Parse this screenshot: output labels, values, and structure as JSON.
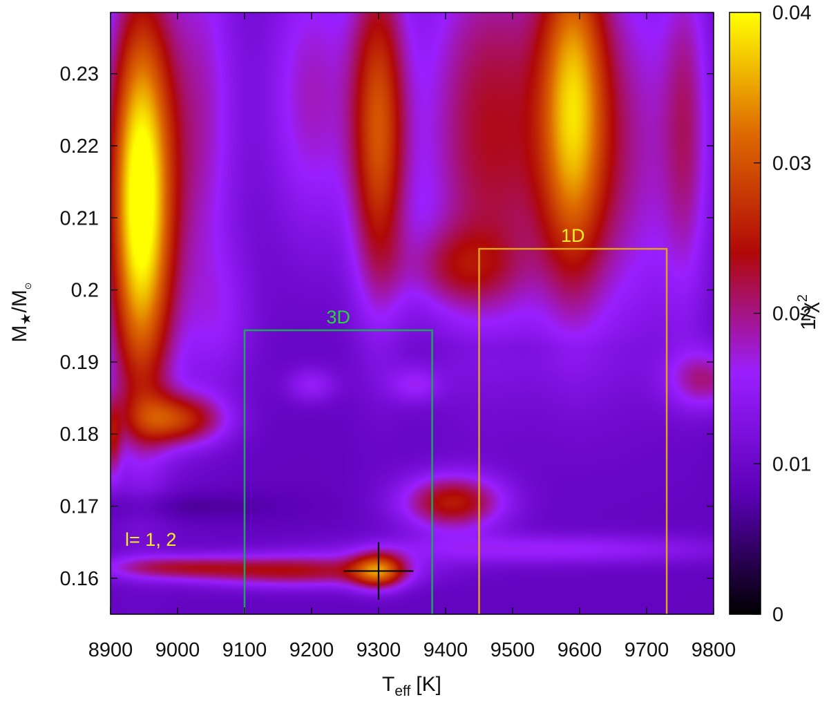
{
  "chart_data": {
    "type": "heatmap",
    "x_axis": {
      "quantity": "T",
      "subscript": "eff",
      "unit": "[K]",
      "range": [
        8900,
        9800
      ],
      "ticks": [
        "8900",
        "9000",
        "9100",
        "9200",
        "9300",
        "9400",
        "9500",
        "9600",
        "9700",
        "9800"
      ]
    },
    "y_axis": {
      "quantity": "M",
      "star_symbol": "★",
      "slash": "/M",
      "sun_symbol": "⊙",
      "range": [
        0.155,
        0.2385
      ],
      "ticks": [
        "0.16",
        "0.17",
        "0.18",
        "0.19",
        "0.2",
        "0.21",
        "0.22",
        "0.23"
      ]
    },
    "colorbar": {
      "label_base": "1/χ",
      "label_exp": "2",
      "range": [
        0,
        0.04
      ],
      "ticks": [
        "0",
        "0.01",
        "0.02",
        "0.03",
        "0.04"
      ],
      "colors": [
        "#000000",
        "#5b00b6",
        "#9a1fff",
        "#b00808",
        "#de6a00",
        "#ffff00"
      ]
    },
    "background_value": 0.009,
    "blobs": [
      {
        "x": 8945,
        "y": 0.2125,
        "sx": 35,
        "sy": 0.02,
        "v": 0.034
      },
      {
        "x": 9035,
        "y": 0.224,
        "sx": 40,
        "sy": 0.022,
        "v": 0.009
      },
      {
        "x": 9200,
        "y": 0.227,
        "sx": 50,
        "sy": 0.015,
        "v": 0.009
      },
      {
        "x": 9070,
        "y": 0.196,
        "sx": 40,
        "sy": 0.007,
        "v": 0.004
      },
      {
        "x": 9000,
        "y": 0.182,
        "sx": 50,
        "sy": 0.0026,
        "v": 0.016
      },
      {
        "x": 9300,
        "y": 0.222,
        "sx": 30,
        "sy": 0.017,
        "v": 0.019
      },
      {
        "x": 9465,
        "y": 0.222,
        "sx": 75,
        "sy": 0.02,
        "v": 0.014
      },
      {
        "x": 9420,
        "y": 0.203,
        "sx": 60,
        "sy": 0.004,
        "v": 0.008
      },
      {
        "x": 9590,
        "y": 0.226,
        "sx": 35,
        "sy": 0.017,
        "v": 0.02
      },
      {
        "x": 9660,
        "y": 0.22,
        "sx": 75,
        "sy": 0.02,
        "v": 0.01
      },
      {
        "x": 9760,
        "y": 0.223,
        "sx": 25,
        "sy": 0.018,
        "v": 0.008
      },
      {
        "x": 9300,
        "y": 0.161,
        "sx": 28,
        "sy": 0.0018,
        "v": 0.018
      },
      {
        "x": 9180,
        "y": 0.161,
        "sx": 110,
        "sy": 0.0016,
        "v": 0.014
      },
      {
        "x": 8990,
        "y": 0.1615,
        "sx": 80,
        "sy": 0.0012,
        "v": 0.01
      },
      {
        "x": 9410,
        "y": 0.1705,
        "sx": 55,
        "sy": 0.0028,
        "v": 0.016
      },
      {
        "x": 9200,
        "y": 0.1868,
        "sx": 28,
        "sy": 0.0018,
        "v": 0.006
      },
      {
        "x": 9355,
        "y": 0.1868,
        "sx": 28,
        "sy": 0.0018,
        "v": 0.006
      },
      {
        "x": 9790,
        "y": 0.1875,
        "sx": 40,
        "sy": 0.003,
        "v": 0.01
      },
      {
        "x": 8902,
        "y": 0.179,
        "sx": 10,
        "sy": 0.004,
        "v": 0.01
      },
      {
        "x": 9550,
        "y": 0.164,
        "sx": 200,
        "sy": 0.0015,
        "v": 0.007
      },
      {
        "x": 8980,
        "y": 0.17,
        "sx": 120,
        "sy": 0.0015,
        "v": -0.003
      },
      {
        "x": 9500,
        "y": 0.192,
        "sx": 120,
        "sy": 0.0012,
        "v": -0.001
      }
    ],
    "boxes": [
      {
        "label": "3D",
        "x0": 9100,
        "x1": 9380,
        "y1": 0.1944,
        "color": "#1aa65c",
        "label_color": "#22d83a"
      },
      {
        "label": "1D",
        "x0": 9450,
        "x1": 9730,
        "y1": 0.2057,
        "color": "#e0a21a",
        "label_color": "#ffee22"
      }
    ],
    "marker": {
      "x": 9300,
      "y": 0.161,
      "dx": 52,
      "dy": 0.004,
      "color": "#000000"
    },
    "annotation": {
      "text": "l= 1, 2",
      "x": 8960,
      "y": 0.1645,
      "color": "#ffee22"
    }
  }
}
